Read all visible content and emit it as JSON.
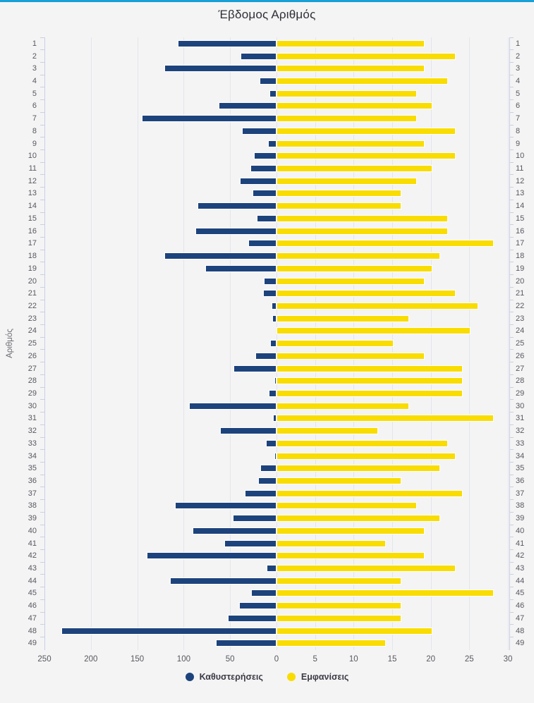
{
  "page": {
    "top_border_color": "#189fd6",
    "background_color": "#f4f4f5"
  },
  "chart_data": {
    "type": "bar",
    "variant": "horizontal-bidirectional",
    "title": "Έβδομος Αριθμός",
    "y_axis_title": "Αριθμός",
    "grid": true,
    "legend_position": "bottom",
    "categories": [
      1,
      2,
      3,
      4,
      5,
      6,
      7,
      8,
      9,
      10,
      11,
      12,
      13,
      14,
      15,
      16,
      17,
      18,
      19,
      20,
      21,
      22,
      23,
      24,
      25,
      26,
      27,
      28,
      29,
      30,
      31,
      32,
      33,
      34,
      35,
      36,
      37,
      38,
      39,
      40,
      41,
      42,
      43,
      44,
      45,
      46,
      47,
      48,
      49
    ],
    "series": [
      {
        "name": "Καθυστερήσεις",
        "color": "#1d437c",
        "direction": "left",
        "axis_range": [
          0,
          250
        ],
        "axis_ticks": [
          250,
          200,
          150,
          100,
          50,
          0
        ],
        "values": [
          105,
          37,
          119,
          17,
          6,
          61,
          144,
          36,
          8,
          23,
          27,
          38,
          24,
          84,
          20,
          86,
          29,
          119,
          75,
          12,
          13,
          4,
          3,
          0,
          5,
          21,
          45,
          1,
          7,
          93,
          2,
          59,
          10,
          1,
          16,
          18,
          33,
          108,
          46,
          89,
          55,
          138,
          9,
          113,
          26,
          39,
          51,
          230,
          64
        ]
      },
      {
        "name": "Εμφανίσεις",
        "color": "#f9dc00",
        "direction": "right",
        "axis_range": [
          0,
          30
        ],
        "axis_ticks": [
          5,
          10,
          15,
          20,
          25,
          30
        ],
        "values": [
          19,
          23,
          19,
          22,
          18,
          20,
          18,
          23,
          19,
          23,
          20,
          18,
          16,
          16,
          22,
          22,
          28,
          21,
          20,
          19,
          23,
          26,
          17,
          25,
          15,
          19,
          24,
          24,
          24,
          17,
          28,
          13,
          22,
          23,
          21,
          16,
          24,
          18,
          21,
          19,
          14,
          19,
          23,
          16,
          28,
          16,
          16,
          20,
          14
        ]
      }
    ],
    "x_tick_labels": [
      "250",
      "200",
      "150",
      "100",
      "50",
      "0",
      "5",
      "10",
      "15",
      "20",
      "25",
      "30"
    ],
    "legend": [
      {
        "label": "Καθυστερήσεις",
        "color": "#1d437c"
      },
      {
        "label": "Εμφανίσεις",
        "color": "#f9dc00"
      }
    ]
  }
}
